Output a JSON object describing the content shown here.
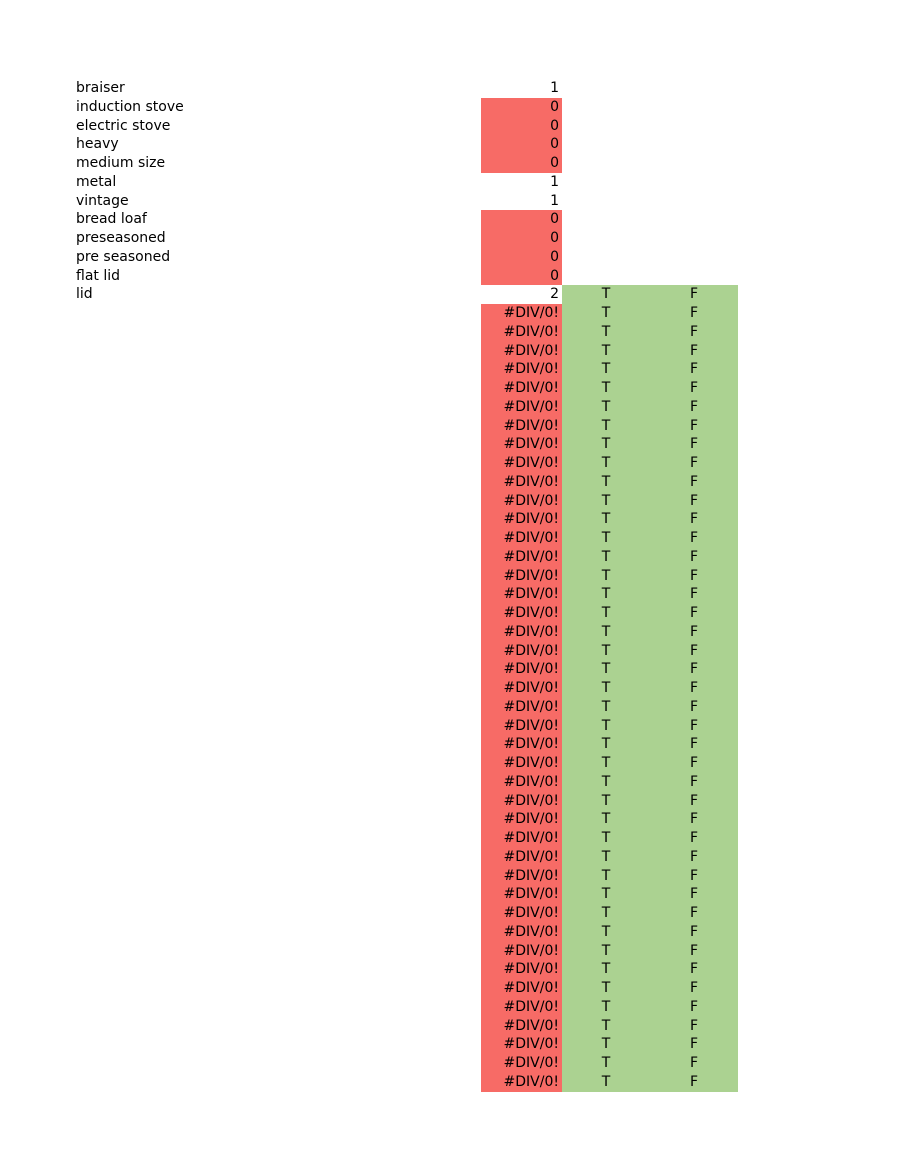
{
  "colors": {
    "error_fill": "#f76b66",
    "flag_fill": "#abd291"
  },
  "keyword_rows": [
    {
      "label": "braiser",
      "value": "1",
      "highlight": false
    },
    {
      "label": "induction stove",
      "value": "0",
      "highlight": true
    },
    {
      "label": "electric stove",
      "value": "0",
      "highlight": true
    },
    {
      "label": "heavy",
      "value": "0",
      "highlight": true
    },
    {
      "label": "medium size",
      "value": "0",
      "highlight": true
    },
    {
      "label": "metal",
      "value": "1",
      "highlight": false
    },
    {
      "label": "vintage",
      "value": "1",
      "highlight": false
    },
    {
      "label": "bread loaf",
      "value": "0",
      "highlight": true
    },
    {
      "label": "preseasoned",
      "value": "0",
      "highlight": true
    },
    {
      "label": "pre seasoned",
      "value": "0",
      "highlight": true
    },
    {
      "label": "flat lid",
      "value": "0",
      "highlight": true
    },
    {
      "label": "lid",
      "value": "2",
      "highlight": false,
      "flags": [
        "T",
        "F"
      ]
    }
  ],
  "error_rows": [
    [
      "#DIV/0!",
      "T",
      "F"
    ],
    [
      "#DIV/0!",
      "T",
      "F"
    ],
    [
      "#DIV/0!",
      "T",
      "F"
    ],
    [
      "#DIV/0!",
      "T",
      "F"
    ],
    [
      "#DIV/0!",
      "T",
      "F"
    ],
    [
      "#DIV/0!",
      "T",
      "F"
    ],
    [
      "#DIV/0!",
      "T",
      "F"
    ],
    [
      "#DIV/0!",
      "T",
      "F"
    ],
    [
      "#DIV/0!",
      "T",
      "F"
    ],
    [
      "#DIV/0!",
      "T",
      "F"
    ],
    [
      "#DIV/0!",
      "T",
      "F"
    ],
    [
      "#DIV/0!",
      "T",
      "F"
    ],
    [
      "#DIV/0!",
      "T",
      "F"
    ],
    [
      "#DIV/0!",
      "T",
      "F"
    ],
    [
      "#DIV/0!",
      "T",
      "F"
    ],
    [
      "#DIV/0!",
      "T",
      "F"
    ],
    [
      "#DIV/0!",
      "T",
      "F"
    ],
    [
      "#DIV/0!",
      "T",
      "F"
    ],
    [
      "#DIV/0!",
      "T",
      "F"
    ],
    [
      "#DIV/0!",
      "T",
      "F"
    ],
    [
      "#DIV/0!",
      "T",
      "F"
    ],
    [
      "#DIV/0!",
      "T",
      "F"
    ],
    [
      "#DIV/0!",
      "T",
      "F"
    ],
    [
      "#DIV/0!",
      "T",
      "F"
    ],
    [
      "#DIV/0!",
      "T",
      "F"
    ],
    [
      "#DIV/0!",
      "T",
      "F"
    ],
    [
      "#DIV/0!",
      "T",
      "F"
    ],
    [
      "#DIV/0!",
      "T",
      "F"
    ],
    [
      "#DIV/0!",
      "T",
      "F"
    ],
    [
      "#DIV/0!",
      "T",
      "F"
    ],
    [
      "#DIV/0!",
      "T",
      "F"
    ],
    [
      "#DIV/0!",
      "T",
      "F"
    ],
    [
      "#DIV/0!",
      "T",
      "F"
    ],
    [
      "#DIV/0!",
      "T",
      "F"
    ],
    [
      "#DIV/0!",
      "T",
      "F"
    ],
    [
      "#DIV/0!",
      "T",
      "F"
    ],
    [
      "#DIV/0!",
      "T",
      "F"
    ],
    [
      "#DIV/0!",
      "T",
      "F"
    ],
    [
      "#DIV/0!",
      "T",
      "F"
    ],
    [
      "#DIV/0!",
      "T",
      "F"
    ],
    [
      "#DIV/0!",
      "T",
      "F"
    ],
    [
      "#DIV/0!",
      "T",
      "F"
    ]
  ]
}
